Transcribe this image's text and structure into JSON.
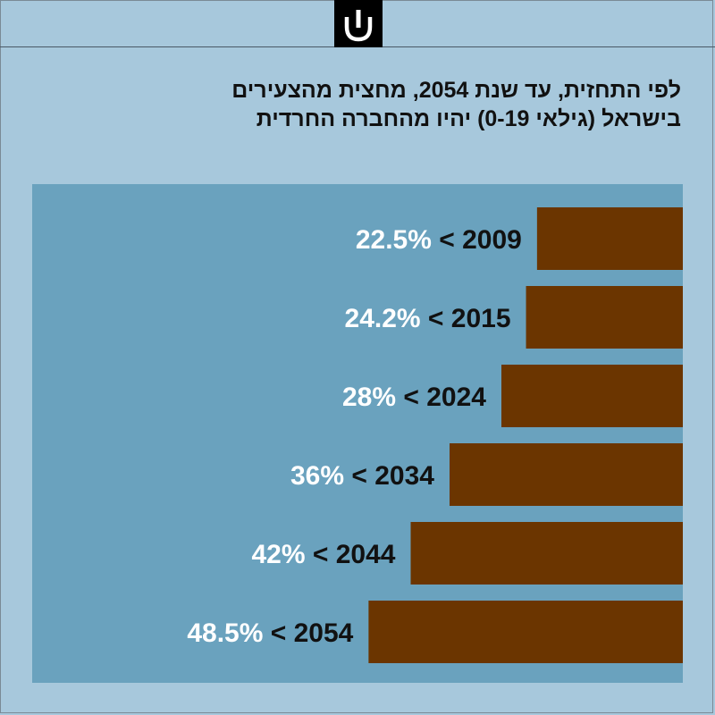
{
  "title": {
    "line1": "לפי התחזית, עד שנת 2054, מחצית מהצעירים",
    "line2": "בישראל (גילאי 0-19) יהיו מהחברה החרדית"
  },
  "colors": {
    "background": "#a7c8dc",
    "plot_background": "#6aa2be",
    "bar": "#6b3500",
    "year_text": "#111111",
    "value_text": "#ffffff"
  },
  "chart_data": {
    "type": "bar",
    "orientation": "horizontal",
    "bar_direction": "right-to-left",
    "title": "לפי התחזית, עד שנת 2054, מחצית מהצעירים בישראל (גילאי 0-19) יהיו מהחברה החרדית",
    "categories": [
      "2009",
      "2015",
      "2024",
      "2034",
      "2044",
      "2054"
    ],
    "values": [
      22.5,
      24.2,
      28,
      36,
      42,
      48.5
    ],
    "value_labels": [
      "22.5%",
      "24.2%",
      "28%",
      "36%",
      "42%",
      "48.5%"
    ],
    "separator": "<",
    "unit": "%",
    "grid": false,
    "legend": "none"
  }
}
